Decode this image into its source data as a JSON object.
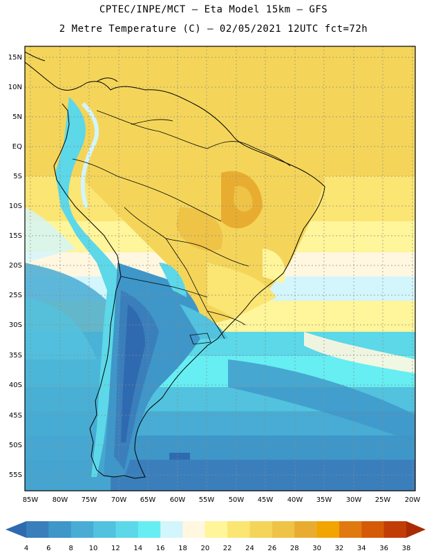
{
  "header": {
    "line1": "CPTEC/INPE/MCT –  Eta Model 15km – GFS",
    "line2": "2 Metre Temperature (C) – 02/05/2021 12UTC fct=72h"
  },
  "map": {
    "lat_labels": [
      "15N",
      "10N",
      "5N",
      "EQ",
      "5S",
      "10S",
      "15S",
      "20S",
      "25S",
      "30S",
      "35S",
      "40S",
      "45S",
      "50S",
      "55S"
    ],
    "lon_labels": [
      "85W",
      "80W",
      "75W",
      "70W",
      "65W",
      "60W",
      "55W",
      "50W",
      "45W",
      "40W",
      "35W",
      "30W",
      "25W",
      "20W"
    ]
  },
  "colorbar": {
    "labels": [
      "4",
      "6",
      "8",
      "10",
      "12",
      "14",
      "16",
      "18",
      "20",
      "22",
      "24",
      "26",
      "28",
      "30",
      "32",
      "34",
      "36",
      "38"
    ],
    "colors": [
      "#2f6ab0",
      "#3a7fbc",
      "#3f96c8",
      "#48acd4",
      "#52c2de",
      "#5cd8e8",
      "#66eef2",
      "#d3f5fc",
      "#fff7e0",
      "#fff59a",
      "#fbe573",
      "#f4d55a",
      "#eec346",
      "#e8ad30",
      "#f2a500",
      "#e07a10",
      "#d45a08",
      "#c23c05",
      "#aa2a02"
    ]
  }
}
